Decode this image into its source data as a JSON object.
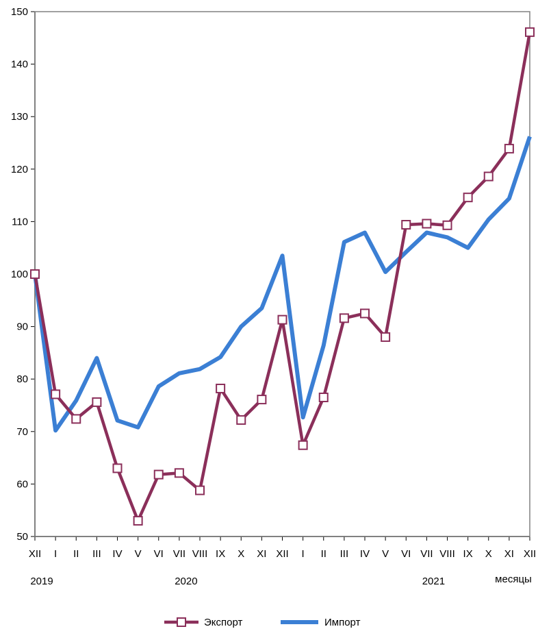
{
  "chart_data": {
    "type": "line",
    "categories": [
      "XII",
      "I",
      "II",
      "III",
      "IV",
      "V",
      "VI",
      "VII",
      "VIII",
      "IX",
      "X",
      "XI",
      "XII",
      "I",
      "II",
      "III",
      "IV",
      "V",
      "VI",
      "VII",
      "VIII",
      "IX",
      "X",
      "XI",
      "XII"
    ],
    "year_labels": [
      {
        "index": 0,
        "text": "2019"
      },
      {
        "index": 7,
        "text": "2020"
      },
      {
        "index": 19,
        "text": "2021"
      }
    ],
    "xlabel": "месяцы",
    "ylabel": "",
    "ylim": [
      50,
      150
    ],
    "yticks": [
      50,
      60,
      70,
      80,
      90,
      100,
      110,
      120,
      130,
      140,
      150
    ],
    "grid": false,
    "legend_position": "bottom",
    "series": [
      {
        "name": "Экспорт",
        "color": "#8b2f5a",
        "marker": "square",
        "values": [
          100,
          77.1,
          72.4,
          75.6,
          63.0,
          53.0,
          61.8,
          62.1,
          58.8,
          78.2,
          72.2,
          76.1,
          91.3,
          67.4,
          76.5,
          91.6,
          92.5,
          88.0,
          109.4,
          109.6,
          109.3,
          114.6,
          118.6,
          123.9,
          146.1
        ]
      },
      {
        "name": "Импорт",
        "color": "#3b7fd4",
        "marker": "none",
        "values": [
          100,
          70.2,
          75.9,
          84.0,
          72.1,
          70.8,
          78.6,
          81.1,
          81.9,
          84.2,
          90.0,
          93.5,
          103.5,
          72.7,
          86.4,
          106.1,
          107.9,
          100.4,
          104.2,
          107.9,
          107.0,
          105.0,
          110.4,
          114.4,
          126.2
        ]
      }
    ]
  }
}
